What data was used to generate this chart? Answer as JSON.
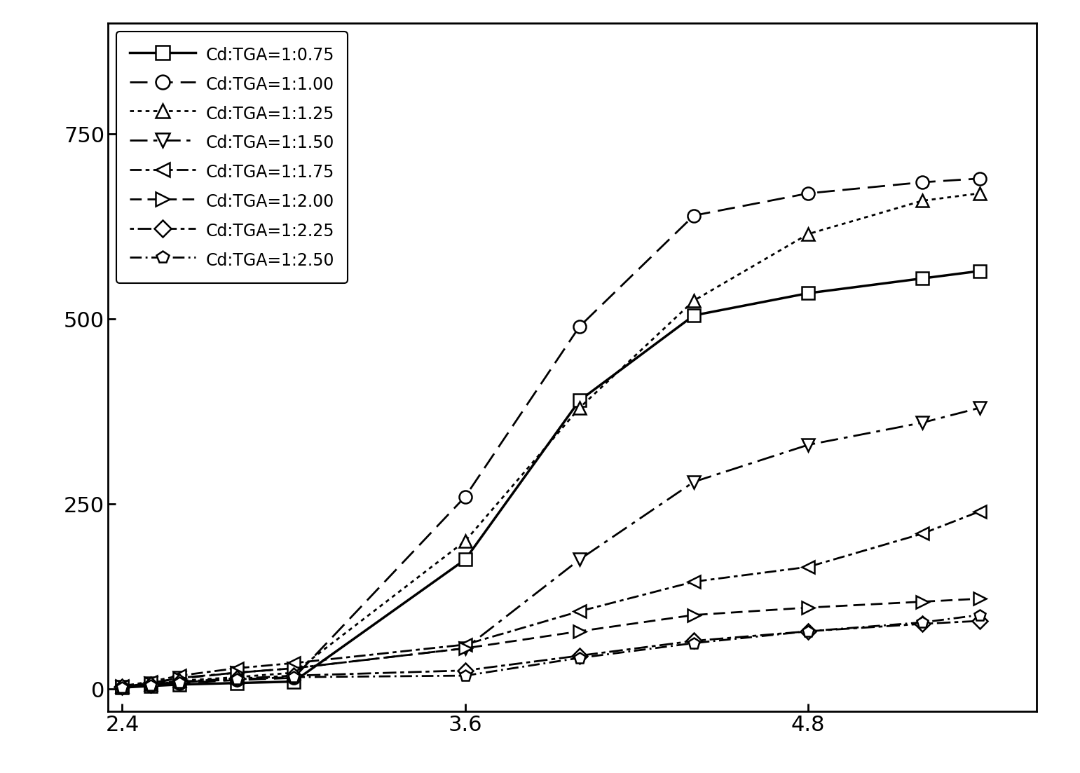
{
  "series": [
    {
      "label": "Cd:TGA=1:0.75",
      "x": [
        2.4,
        2.5,
        2.6,
        2.8,
        3.0,
        3.6,
        4.0,
        4.4,
        4.8,
        5.2,
        5.4
      ],
      "y": [
        2,
        4,
        6,
        8,
        10,
        175,
        390,
        505,
        535,
        555,
        565
      ],
      "linestyle": "-",
      "marker": "s",
      "linewidth": 2.5,
      "markersize": 13
    },
    {
      "label": "Cd:TGA=1:1.00",
      "x": [
        2.4,
        2.5,
        2.6,
        2.8,
        3.0,
        3.6,
        4.0,
        4.4,
        4.8,
        5.2,
        5.4
      ],
      "y": [
        3,
        5,
        8,
        12,
        15,
        260,
        490,
        640,
        670,
        685,
        690
      ],
      "linestyle": "--",
      "marker": "o",
      "linewidth": 2.0,
      "markersize": 13
    },
    {
      "label": "Cd:TGA=1:1.25",
      "x": [
        2.4,
        2.5,
        2.6,
        2.8,
        3.0,
        3.6,
        4.0,
        4.4,
        4.8,
        5.2,
        5.4
      ],
      "y": [
        4,
        7,
        11,
        16,
        22,
        200,
        380,
        525,
        615,
        660,
        670
      ],
      "linestyle": "dotted",
      "marker": "^",
      "linewidth": 2.0,
      "markersize": 13
    },
    {
      "label": "Cd:TGA=1:1.50",
      "x": [
        2.4,
        2.5,
        2.6,
        2.8,
        3.0,
        3.6,
        4.0,
        4.4,
        4.8,
        5.2,
        5.4
      ],
      "y": [
        3,
        8,
        15,
        22,
        28,
        55,
        175,
        280,
        330,
        360,
        380
      ],
      "linestyle": "-.",
      "marker": "v",
      "linewidth": 2.0,
      "markersize": 13
    },
    {
      "label": "Cd:TGA=1:1.75",
      "x": [
        2.4,
        2.5,
        2.6,
        2.8,
        3.0,
        3.6,
        4.0,
        4.4,
        4.8,
        5.2,
        5.4
      ],
      "y": [
        4,
        10,
        18,
        28,
        35,
        60,
        105,
        145,
        165,
        210,
        240
      ],
      "linestyle": "-.",
      "marker": "<",
      "linewidth": 2.0,
      "markersize": 13
    },
    {
      "label": "Cd:TGA=1:2.00",
      "x": [
        2.4,
        2.5,
        2.6,
        2.8,
        3.0,
        3.6,
        4.0,
        4.4,
        4.8,
        5.2,
        5.4
      ],
      "y": [
        4,
        8,
        14,
        22,
        28,
        55,
        78,
        100,
        110,
        118,
        122
      ],
      "linestyle": "--",
      "marker": ">",
      "linewidth": 2.0,
      "markersize": 13
    },
    {
      "label": "Cd:TGA=1:2.25",
      "x": [
        2.4,
        2.5,
        2.6,
        2.8,
        3.0,
        3.6,
        4.0,
        4.4,
        4.8,
        5.2,
        5.4
      ],
      "y": [
        3,
        6,
        10,
        14,
        18,
        25,
        45,
        65,
        78,
        88,
        92
      ],
      "linestyle": "dotted",
      "marker": "D",
      "linewidth": 2.0,
      "markersize": 11
    },
    {
      "label": "Cd:TGA=1:2.50",
      "x": [
        2.4,
        2.5,
        2.6,
        2.8,
        3.0,
        3.6,
        4.0,
        4.4,
        4.8,
        5.2,
        5.4
      ],
      "y": [
        2,
        5,
        9,
        13,
        16,
        18,
        42,
        62,
        78,
        90,
        100
      ],
      "linestyle": "-.",
      "marker": "p",
      "linewidth": 2.0,
      "markersize": 12
    }
  ],
  "linestyle_dashes": [
    null,
    [
      9,
      4
    ],
    [
      2,
      2
    ],
    [
      9,
      3,
      2,
      3
    ],
    [
      6,
      2,
      2,
      2
    ],
    [
      6,
      3
    ],
    [
      2,
      2,
      7,
      2
    ],
    [
      6,
      2,
      1,
      2
    ]
  ],
  "xlim": [
    2.35,
    5.6
  ],
  "ylim": [
    -30,
    900
  ],
  "xticks": [
    2.4,
    3.6,
    4.8
  ],
  "yticks": [
    0,
    250,
    500,
    750
  ],
  "background_color": "#ffffff",
  "legend_loc": "upper left",
  "tick_fontsize": 22,
  "legend_fontsize": 17,
  "fig_width": 15.41,
  "fig_height": 11.03,
  "dpi": 100
}
